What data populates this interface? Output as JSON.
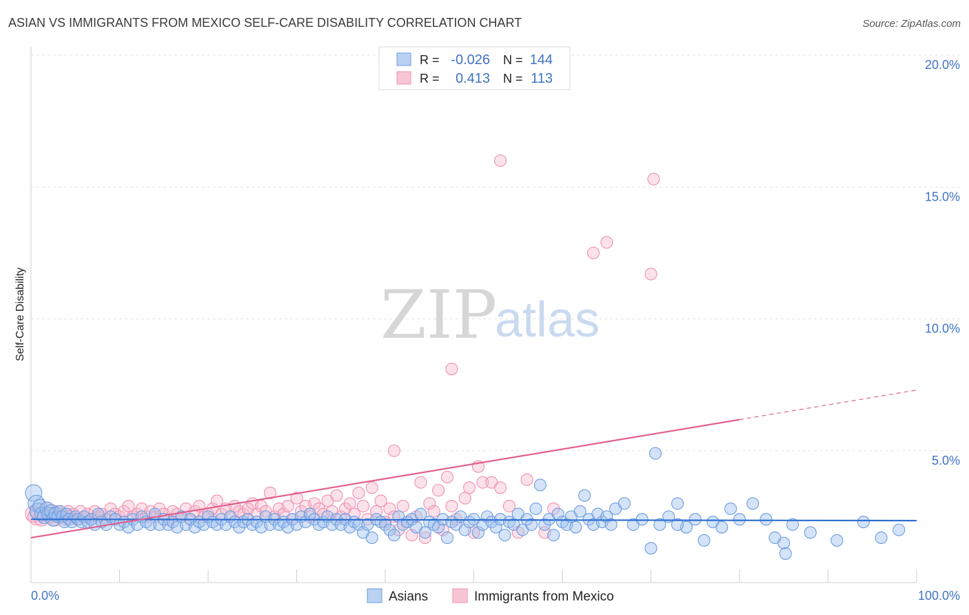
{
  "title": "ASIAN VS IMMIGRANTS FROM MEXICO SELF-CARE DISABILITY CORRELATION CHART",
  "source": "Source: ZipAtlas.com",
  "watermark": {
    "zip": "ZIP",
    "atlas": "atlas"
  },
  "chart_data": {
    "type": "scatter",
    "title": "ASIAN VS IMMIGRANTS FROM MEXICO SELF-CARE DISABILITY CORRELATION CHART",
    "xlabel": "",
    "ylabel": "Self-Care Disability",
    "xlim": [
      0,
      100
    ],
    "ylim": [
      0,
      20
    ],
    "x_tick_labels": [
      "0.0%",
      "100.0%"
    ],
    "y_ticks": [
      {
        "value": 5,
        "label": "5.0%"
      },
      {
        "value": 10,
        "label": "10.0%"
      },
      {
        "value": 15,
        "label": "15.0%"
      },
      {
        "value": 20,
        "label": "20.0%"
      }
    ],
    "grid": true,
    "legend_position": "top-center",
    "colors": {
      "asians": "#6b9be0",
      "mexico": "#ef8fae",
      "asians_line": "#2f6fd0",
      "mexico_line": "#e0608e"
    },
    "stats": [
      {
        "r_label": "R =",
        "r": "-0.026",
        "n_label": "N =",
        "n": "144"
      },
      {
        "r_label": "R =",
        "r": "0.413",
        "n_label": "N =",
        "n": "113"
      }
    ],
    "series": [
      {
        "name": "Asians",
        "trend": {
          "x0": 0,
          "y0": 2.4,
          "x1": 100,
          "y1": 2.35,
          "dash_from": null
        },
        "points": [
          [
            0.3,
            3.4
          ],
          [
            0.6,
            3.0
          ],
          [
            0.8,
            2.7
          ],
          [
            1.0,
            2.9
          ],
          [
            1.2,
            2.6
          ],
          [
            1.5,
            2.5
          ],
          [
            1.8,
            2.8
          ],
          [
            2.0,
            2.6
          ],
          [
            2.3,
            2.7
          ],
          [
            2.5,
            2.4
          ],
          [
            2.8,
            2.6
          ],
          [
            3.0,
            2.5
          ],
          [
            3.3,
            2.7
          ],
          [
            3.5,
            2.5
          ],
          [
            3.8,
            2.3
          ],
          [
            4.0,
            2.6
          ],
          [
            4.3,
            2.4
          ],
          [
            4.6,
            2.3
          ],
          [
            5.0,
            2.5
          ],
          [
            5.3,
            2.4
          ],
          [
            5.7,
            2.3
          ],
          [
            6.0,
            2.5
          ],
          [
            6.4,
            2.3
          ],
          [
            6.8,
            2.4
          ],
          [
            7.2,
            2.2
          ],
          [
            7.6,
            2.6
          ],
          [
            8.0,
            2.3
          ],
          [
            8.5,
            2.2
          ],
          [
            9.0,
            2.5
          ],
          [
            9.5,
            2.4
          ],
          [
            10.0,
            2.2
          ],
          [
            10.5,
            2.3
          ],
          [
            11.0,
            2.1
          ],
          [
            11.5,
            2.4
          ],
          [
            12.0,
            2.2
          ],
          [
            12.5,
            2.5
          ],
          [
            13.0,
            2.3
          ],
          [
            13.5,
            2.2
          ],
          [
            14.0,
            2.6
          ],
          [
            14.5,
            2.2
          ],
          [
            15.0,
            2.4
          ],
          [
            15.5,
            2.2
          ],
          [
            16.0,
            2.3
          ],
          [
            16.5,
            2.1
          ],
          [
            17.0,
            2.5
          ],
          [
            17.5,
            2.2
          ],
          [
            18.0,
            2.4
          ],
          [
            18.5,
            2.1
          ],
          [
            19.0,
            2.3
          ],
          [
            19.5,
            2.2
          ],
          [
            20.0,
            2.5
          ],
          [
            20.5,
            2.3
          ],
          [
            21.0,
            2.2
          ],
          [
            21.5,
            2.4
          ],
          [
            22.0,
            2.2
          ],
          [
            22.5,
            2.5
          ],
          [
            23.0,
            2.3
          ],
          [
            23.5,
            2.1
          ],
          [
            24.0,
            2.3
          ],
          [
            24.5,
            2.4
          ],
          [
            25.0,
            2.2
          ],
          [
            25.5,
            2.3
          ],
          [
            26.0,
            2.1
          ],
          [
            26.5,
            2.5
          ],
          [
            27.0,
            2.2
          ],
          [
            27.5,
            2.4
          ],
          [
            28.0,
            2.2
          ],
          [
            28.5,
            2.3
          ],
          [
            29.0,
            2.1
          ],
          [
            29.5,
            2.4
          ],
          [
            30.0,
            2.2
          ],
          [
            30.5,
            2.5
          ],
          [
            31.0,
            2.3
          ],
          [
            31.5,
            2.6
          ],
          [
            32.0,
            2.4
          ],
          [
            32.5,
            2.2
          ],
          [
            33.0,
            2.3
          ],
          [
            33.5,
            2.5
          ],
          [
            34.0,
            2.2
          ],
          [
            34.5,
            2.4
          ],
          [
            35.0,
            2.2
          ],
          [
            35.5,
            2.4
          ],
          [
            36.0,
            2.1
          ],
          [
            36.5,
            2.3
          ],
          [
            37.0,
            2.2
          ],
          [
            37.5,
            1.9
          ],
          [
            38.0,
            2.2
          ],
          [
            38.5,
            1.7
          ],
          [
            39.0,
            2.4
          ],
          [
            39.5,
            2.3
          ],
          [
            40.0,
            2.2
          ],
          [
            40.5,
            2.0
          ],
          [
            41.0,
            1.8
          ],
          [
            41.5,
            2.5
          ],
          [
            42.0,
            2.2
          ],
          [
            42.5,
            2.3
          ],
          [
            43.0,
            2.4
          ],
          [
            43.5,
            2.1
          ],
          [
            44.0,
            2.6
          ],
          [
            44.5,
            1.9
          ],
          [
            45.0,
            2.3
          ],
          [
            45.5,
            2.2
          ],
          [
            46.0,
            2.1
          ],
          [
            46.5,
            2.4
          ],
          [
            47.0,
            1.7
          ],
          [
            47.5,
            2.3
          ],
          [
            48.0,
            2.2
          ],
          [
            48.5,
            2.5
          ],
          [
            49.0,
            2.0
          ],
          [
            49.5,
            2.3
          ],
          [
            50.0,
            2.4
          ],
          [
            50.5,
            1.9
          ],
          [
            51.0,
            2.2
          ],
          [
            51.5,
            2.5
          ],
          [
            52.0,
            2.3
          ],
          [
            52.5,
            2.1
          ],
          [
            53.0,
            2.4
          ],
          [
            53.5,
            1.8
          ],
          [
            54.0,
            2.3
          ],
          [
            54.5,
            2.2
          ],
          [
            55.0,
            2.6
          ],
          [
            55.5,
            2.0
          ],
          [
            56.0,
            2.4
          ],
          [
            56.5,
            2.2
          ],
          [
            57.0,
            2.8
          ],
          [
            57.5,
            3.7
          ],
          [
            58.0,
            2.2
          ],
          [
            58.5,
            2.4
          ],
          [
            59.0,
            1.8
          ],
          [
            59.5,
            2.6
          ],
          [
            60.0,
            2.3
          ],
          [
            60.5,
            2.2
          ],
          [
            61.0,
            2.5
          ],
          [
            61.5,
            2.1
          ],
          [
            62.0,
            2.7
          ],
          [
            62.5,
            3.3
          ],
          [
            63.0,
            2.4
          ],
          [
            63.5,
            2.2
          ],
          [
            64.0,
            2.6
          ],
          [
            64.5,
            2.3
          ],
          [
            65.0,
            2.5
          ],
          [
            65.5,
            2.2
          ],
          [
            66.0,
            2.8
          ],
          [
            67.0,
            3.0
          ],
          [
            68.0,
            2.2
          ],
          [
            69.0,
            2.4
          ],
          [
            70.0,
            1.3
          ],
          [
            71.0,
            2.2
          ],
          [
            72.0,
            2.5
          ],
          [
            73.0,
            3.0
          ],
          [
            74.0,
            2.1
          ],
          [
            75.0,
            2.4
          ],
          [
            76.0,
            1.6
          ],
          [
            77.0,
            2.3
          ],
          [
            78.0,
            2.1
          ],
          [
            79.0,
            2.8
          ],
          [
            80.0,
            2.4
          ],
          [
            81.5,
            3.0
          ],
          [
            83.0,
            2.4
          ],
          [
            84.0,
            1.7
          ],
          [
            85.0,
            1.5
          ],
          [
            86.0,
            2.2
          ],
          [
            88.0,
            1.9
          ],
          [
            91.0,
            1.6
          ],
          [
            94.0,
            2.3
          ],
          [
            96.0,
            1.7
          ],
          [
            98.0,
            2.0
          ],
          [
            73.0,
            2.2
          ],
          [
            70.5,
            4.9
          ],
          [
            85.2,
            1.1
          ]
        ]
      },
      {
        "name": "Immigrants from Mexico",
        "trend": {
          "x0": 0,
          "y0": 1.7,
          "x1": 100,
          "y1": 7.3,
          "dash_from": 80
        },
        "points": [
          [
            0.3,
            2.6
          ],
          [
            0.6,
            2.5
          ],
          [
            0.9,
            2.7
          ],
          [
            1.2,
            2.4
          ],
          [
            1.5,
            2.6
          ],
          [
            1.8,
            2.8
          ],
          [
            2.1,
            2.5
          ],
          [
            2.4,
            2.6
          ],
          [
            2.7,
            2.4
          ],
          [
            3.0,
            2.7
          ],
          [
            3.3,
            2.5
          ],
          [
            3.6,
            2.6
          ],
          [
            3.9,
            2.4
          ],
          [
            4.2,
            2.7
          ],
          [
            4.5,
            2.5
          ],
          [
            4.8,
            2.6
          ],
          [
            5.2,
            2.4
          ],
          [
            5.6,
            2.7
          ],
          [
            6.0,
            2.5
          ],
          [
            6.4,
            2.6
          ],
          [
            6.8,
            2.4
          ],
          [
            7.2,
            2.7
          ],
          [
            7.6,
            2.5
          ],
          [
            8.0,
            2.6
          ],
          [
            8.5,
            2.4
          ],
          [
            9.0,
            2.8
          ],
          [
            9.5,
            2.6
          ],
          [
            10.0,
            2.5
          ],
          [
            10.5,
            2.7
          ],
          [
            11.0,
            2.9
          ],
          [
            11.5,
            2.5
          ],
          [
            12.0,
            2.6
          ],
          [
            12.5,
            2.8
          ],
          [
            13.0,
            2.5
          ],
          [
            13.5,
            2.7
          ],
          [
            14.0,
            2.5
          ],
          [
            14.5,
            2.8
          ],
          [
            15.0,
            2.6
          ],
          [
            15.5,
            2.4
          ],
          [
            16.0,
            2.7
          ],
          [
            16.5,
            2.6
          ],
          [
            17.0,
            2.5
          ],
          [
            17.5,
            2.8
          ],
          [
            18.0,
            2.4
          ],
          [
            18.5,
            2.7
          ],
          [
            19.0,
            2.9
          ],
          [
            19.5,
            2.5
          ],
          [
            20.0,
            2.6
          ],
          [
            20.5,
            2.8
          ],
          [
            21.0,
            3.1
          ],
          [
            21.5,
            2.6
          ],
          [
            22.0,
            2.8
          ],
          [
            22.5,
            2.5
          ],
          [
            23.0,
            2.9
          ],
          [
            23.5,
            2.7
          ],
          [
            24.0,
            2.6
          ],
          [
            24.5,
            2.8
          ],
          [
            25.0,
            3.0
          ],
          [
            25.5,
            2.6
          ],
          [
            26.0,
            2.9
          ],
          [
            26.5,
            2.7
          ],
          [
            27.0,
            3.4
          ],
          [
            27.5,
            2.5
          ],
          [
            28.0,
            2.8
          ],
          [
            28.5,
            2.6
          ],
          [
            29.0,
            2.9
          ],
          [
            29.5,
            2.4
          ],
          [
            30.0,
            3.2
          ],
          [
            30.5,
            2.7
          ],
          [
            31.0,
            2.9
          ],
          [
            31.5,
            2.5
          ],
          [
            32.0,
            3.0
          ],
          [
            32.5,
            2.8
          ],
          [
            33.0,
            2.6
          ],
          [
            33.5,
            3.1
          ],
          [
            34.0,
            2.7
          ],
          [
            34.5,
            3.3
          ],
          [
            35.0,
            2.5
          ],
          [
            35.5,
            2.8
          ],
          [
            36.0,
            3.0
          ],
          [
            36.5,
            2.6
          ],
          [
            37.0,
            3.4
          ],
          [
            37.5,
            2.9
          ],
          [
            38.0,
            2.4
          ],
          [
            38.5,
            3.6
          ],
          [
            39.0,
            2.7
          ],
          [
            39.5,
            3.1
          ],
          [
            40.0,
            2.3
          ],
          [
            40.5,
            2.8
          ],
          [
            41.0,
            2.5
          ],
          [
            41.5,
            2.0
          ],
          [
            42.0,
            2.9
          ],
          [
            42.5,
            2.3
          ],
          [
            43.0,
            1.8
          ],
          [
            43.5,
            2.5
          ],
          [
            44.0,
            3.8
          ],
          [
            44.5,
            1.7
          ],
          [
            45.0,
            3.0
          ],
          [
            45.5,
            2.7
          ],
          [
            46.0,
            3.5
          ],
          [
            46.5,
            2.0
          ],
          [
            47.0,
            4.0
          ],
          [
            47.5,
            2.9
          ],
          [
            48.0,
            2.4
          ],
          [
            49.0,
            3.2
          ],
          [
            49.5,
            3.6
          ],
          [
            50.0,
            1.9
          ],
          [
            50.5,
            4.4
          ],
          [
            51.0,
            3.8
          ],
          [
            52.0,
            3.8
          ],
          [
            53.0,
            3.6
          ],
          [
            54.0,
            2.9
          ],
          [
            55.0,
            1.9
          ],
          [
            56.0,
            3.9
          ],
          [
            58.0,
            1.9
          ],
          [
            59.0,
            2.8
          ],
          [
            53.0,
            16.0
          ],
          [
            63.5,
            12.5
          ],
          [
            65.0,
            12.9
          ],
          [
            70.3,
            15.3
          ],
          [
            70.0,
            11.7
          ],
          [
            47.5,
            8.1
          ],
          [
            41.0,
            5.0
          ]
        ]
      }
    ]
  }
}
